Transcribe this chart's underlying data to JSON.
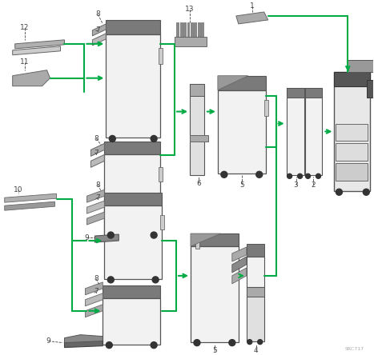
{
  "bg_color": "#ffffff",
  "arrow_color": "#00aa44",
  "line_color": "#00aa44",
  "equip_fill": "#f2f2f2",
  "equip_edge": "#555555",
  "dark_fill": "#7a7a7a",
  "mid_fill": "#aaaaaa",
  "text_color": "#444444",
  "watermark": "SRC717",
  "arrow_lw": 1.5,
  "line_lw": 1.5
}
